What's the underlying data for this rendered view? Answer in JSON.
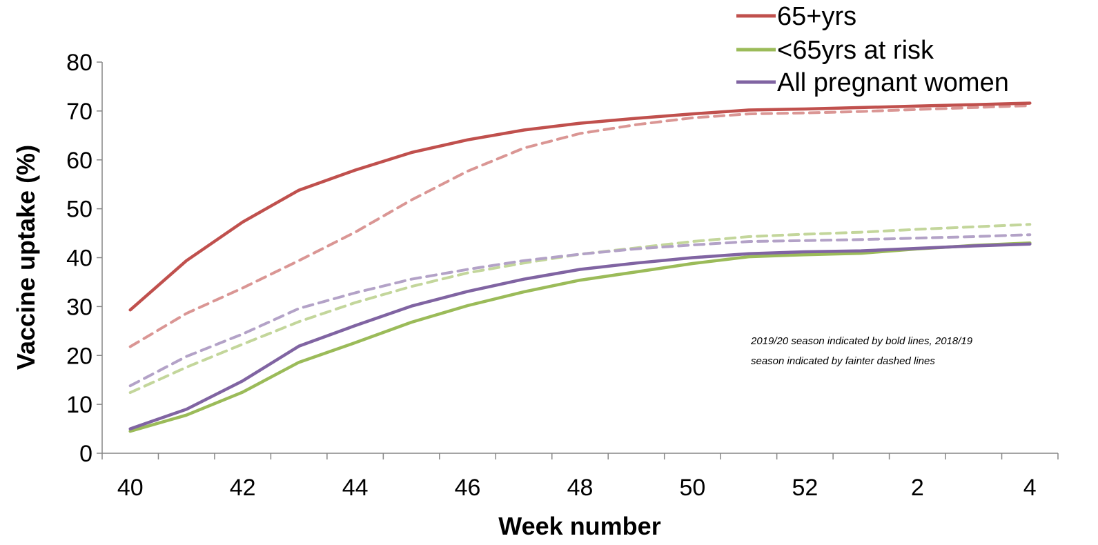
{
  "chart_data": {
    "type": "line",
    "xlabel": "Week number",
    "ylabel": "Vaccine uptake (%)",
    "ylim": [
      0,
      80
    ],
    "yticks": [
      0,
      10,
      20,
      30,
      40,
      50,
      60,
      70,
      80
    ],
    "categories": [
      "40",
      "41",
      "42",
      "43",
      "44",
      "45",
      "46",
      "47",
      "48",
      "49",
      "50",
      "51",
      "52",
      "1",
      "2",
      "3",
      "4"
    ],
    "xtick_labels": [
      "40",
      "",
      "42",
      "",
      "44",
      "",
      "46",
      "",
      "48",
      "",
      "50",
      "",
      "52",
      "",
      "2",
      "",
      "4"
    ],
    "grid": false,
    "legend_position": "top-right",
    "annotation": {
      "line1": "2019/20 season indicated by bold lines, 2018/19",
      "line2": "season indicated by fainter dashed lines"
    },
    "legend": [
      {
        "label": "65+yrs",
        "color": "#C0504D"
      },
      {
        "label": "<65yrs at risk",
        "color": "#9BBB59"
      },
      {
        "label": "All pregnant women",
        "color": "#8064A2"
      }
    ],
    "series": [
      {
        "name": "65+yrs",
        "season": "2019/20",
        "style": "solid",
        "color": "#C0504D",
        "values": [
          29.3,
          39.4,
          47.3,
          53.8,
          57.9,
          61.5,
          64.1,
          66.1,
          67.5,
          68.5,
          69.4,
          70.2,
          70.4,
          70.7,
          71.0,
          71.3,
          71.6
        ]
      },
      {
        "name": "<65yrs at risk",
        "season": "2019/20",
        "style": "solid",
        "color": "#9BBB59",
        "values": [
          4.5,
          7.8,
          12.5,
          18.6,
          22.6,
          26.8,
          30.2,
          33.0,
          35.4,
          37.1,
          38.8,
          40.2,
          40.6,
          40.9,
          41.8,
          42.5,
          43.0
        ]
      },
      {
        "name": "All pregnant women",
        "season": "2019/20",
        "style": "solid",
        "color": "#8064A2",
        "values": [
          5.0,
          9.0,
          14.8,
          21.9,
          26.1,
          30.1,
          33.1,
          35.6,
          37.6,
          38.9,
          40.0,
          40.8,
          41.2,
          41.4,
          41.9,
          42.4,
          42.8
        ]
      },
      {
        "name": "65+yrs",
        "season": "2018/19",
        "style": "dashed",
        "color": "#DA9694",
        "values": [
          21.8,
          28.6,
          33.8,
          39.4,
          45.2,
          51.8,
          57.7,
          62.4,
          65.4,
          67.2,
          68.6,
          69.4,
          69.6,
          69.9,
          70.3,
          70.7,
          71.1
        ]
      },
      {
        "name": "<65yrs at risk",
        "season": "2018/19",
        "style": "dashed",
        "color": "#C3D69B",
        "values": [
          12.4,
          17.6,
          22.3,
          26.9,
          30.8,
          34.1,
          36.9,
          38.9,
          40.7,
          42.0,
          43.3,
          44.3,
          44.8,
          45.2,
          45.8,
          46.3,
          46.8
        ]
      },
      {
        "name": "All pregnant women",
        "season": "2018/19",
        "style": "dashed",
        "color": "#B3A2C7",
        "values": [
          13.8,
          19.8,
          24.4,
          29.6,
          32.8,
          35.6,
          37.6,
          39.4,
          40.7,
          41.8,
          42.6,
          43.3,
          43.5,
          43.7,
          44.0,
          44.3,
          44.7
        ]
      }
    ]
  }
}
